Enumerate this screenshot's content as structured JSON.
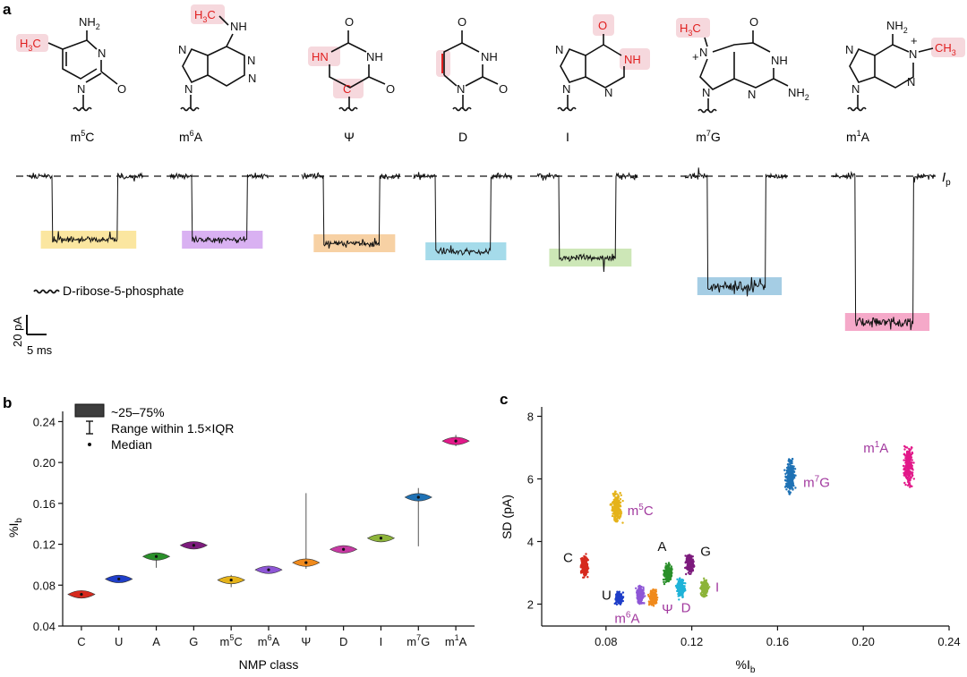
{
  "panels": {
    "a": "a",
    "b": "b",
    "c": "c"
  },
  "structures": [
    {
      "id": "m5C",
      "name": "m",
      "sup": "5",
      "tail": "C"
    },
    {
      "id": "m6A",
      "name": "m",
      "sup": "6",
      "tail": "A"
    },
    {
      "id": "Psi",
      "name": "Ψ",
      "sup": "",
      "tail": ""
    },
    {
      "id": "D",
      "name": "D",
      "sup": "",
      "tail": ""
    },
    {
      "id": "I",
      "name": "I",
      "sup": "",
      "tail": ""
    },
    {
      "id": "m7G",
      "name": "m",
      "sup": "7",
      "tail": "G"
    },
    {
      "id": "m1A",
      "name": "m",
      "sup": "1",
      "tail": "A"
    }
  ],
  "atoms": {
    "NH2": "NH",
    "sub2": "2",
    "N": "N",
    "O": "O",
    "NH": "NH",
    "HN": "HN",
    "H3C": "H",
    "sub3": "3",
    "C": "C",
    "CH3": "CH",
    "plus": "+"
  },
  "traces": {
    "open_pore_label": "I",
    "open_pore_sub": "p",
    "legend_label": "D-ribose-5-phosphate",
    "scale_current": "20 pA",
    "scale_time": "5 ms",
    "colors": [
      "#fbe6a0",
      "#d9b1f2",
      "#f7d1a4",
      "#a5dbea",
      "#cde7b7",
      "#a5cde4",
      "#f5a9c9"
    ]
  },
  "legend_b": {
    "box": "~25–75%",
    "range": "Range within 1.5×IQR",
    "median": "Median"
  },
  "chart_data": [
    {
      "type": "violin",
      "panel": "b",
      "ylabel": "%I",
      "ylabel_sub": "b",
      "xlabel": "NMP class",
      "ylim": [
        0.04,
        0.25
      ],
      "yticks": [
        "0.04",
        "0.08",
        "0.12",
        "0.16",
        "0.20",
        "0.24"
      ],
      "categories": [
        {
          "label": "C",
          "sup": ""
        },
        {
          "label": "U",
          "sup": ""
        },
        {
          "label": "A",
          "sup": ""
        },
        {
          "label": "G",
          "sup": ""
        },
        {
          "label": "m",
          "sup": "5",
          "tail": "C"
        },
        {
          "label": "m",
          "sup": "6",
          "tail": "A"
        },
        {
          "label": "Ψ",
          "sup": ""
        },
        {
          "label": "D",
          "sup": ""
        },
        {
          "label": "I",
          "sup": ""
        },
        {
          "label": "m",
          "sup": "7",
          "tail": "G"
        },
        {
          "label": "m",
          "sup": "1",
          "tail": "A"
        }
      ],
      "medians": [
        0.071,
        0.086,
        0.108,
        0.119,
        0.085,
        0.095,
        0.102,
        0.115,
        0.126,
        0.166,
        0.221
      ],
      "whisker_low": [
        0.069,
        0.084,
        0.097,
        0.116,
        0.078,
        0.093,
        0.096,
        0.112,
        0.123,
        0.118,
        0.216
      ],
      "whisker_high": [
        0.074,
        0.088,
        0.111,
        0.122,
        0.09,
        0.098,
        0.17,
        0.118,
        0.129,
        0.175,
        0.227
      ],
      "colors": [
        "#d62a1e",
        "#1f3ec9",
        "#2a8f2a",
        "#7d1b7d",
        "#e5b31a",
        "#8e56d6",
        "#f08a1c",
        "#c63aa3",
        "#8db43a",
        "#1f72b5",
        "#e21a8a"
      ]
    },
    {
      "type": "scatter",
      "panel": "c",
      "xlabel": "%I",
      "xlabel_sub": "b",
      "ylabel": "SD (pA)",
      "xlim": [
        0.05,
        0.24
      ],
      "ylim": [
        1.3,
        8.3
      ],
      "xticks": [
        "0.08",
        "0.12",
        "0.16",
        "0.20",
        "0.24"
      ],
      "yticks": [
        "2",
        "4",
        "6",
        "8"
      ],
      "clusters": [
        {
          "label": "C",
          "x": 0.07,
          "y": 3.2,
          "sx": 0.0015,
          "sy": 0.28,
          "color": "#d62a1e",
          "lx": 0.06,
          "ly": 3.35,
          "lcolor": "#111111"
        },
        {
          "label": "U",
          "x": 0.086,
          "y": 2.2,
          "sx": 0.0015,
          "sy": 0.15,
          "color": "#1f3ec9",
          "lx": 0.078,
          "ly": 2.15,
          "lcolor": "#111111"
        },
        {
          "label": "A",
          "x": 0.109,
          "y": 3.0,
          "sx": 0.0018,
          "sy": 0.25,
          "color": "#2a8f2a",
          "lx": 0.104,
          "ly": 3.7,
          "lcolor": "#111111"
        },
        {
          "label": "G",
          "x": 0.119,
          "y": 3.3,
          "sx": 0.0016,
          "sy": 0.25,
          "color": "#7d1b7d",
          "lx": 0.124,
          "ly": 3.55,
          "lcolor": "#111111"
        },
        {
          "label": "m",
          "sup": "5",
          "tail": "C",
          "x": 0.085,
          "y": 5.1,
          "sx": 0.002,
          "sy": 0.45,
          "color": "#e5b31a",
          "lx": 0.09,
          "ly": 4.85,
          "lcolor": "#a23a9f"
        },
        {
          "label": "m",
          "sup": "6",
          "tail": "A",
          "x": 0.096,
          "y": 2.3,
          "sx": 0.0016,
          "sy": 0.25,
          "color": "#8e56d6",
          "lx": 0.084,
          "ly": 1.4,
          "lcolor": "#a23a9f"
        },
        {
          "label": "Ψ",
          "x": 0.102,
          "y": 2.2,
          "sx": 0.0016,
          "sy": 0.22,
          "color": "#f08a1c",
          "lx": 0.106,
          "ly": 1.7,
          "lcolor": "#a23a9f"
        },
        {
          "label": "D",
          "x": 0.115,
          "y": 2.5,
          "sx": 0.0016,
          "sy": 0.25,
          "color": "#1fb3d8",
          "lx": 0.115,
          "ly": 1.75,
          "lcolor": "#a23a9f"
        },
        {
          "label": "I",
          "x": 0.126,
          "y": 2.5,
          "sx": 0.0015,
          "sy": 0.22,
          "color": "#8db43a",
          "lx": 0.131,
          "ly": 2.4,
          "lcolor": "#a23a9f"
        },
        {
          "label": "m",
          "sup": "7",
          "tail": "G",
          "x": 0.166,
          "y": 6.1,
          "sx": 0.002,
          "sy": 0.5,
          "color": "#1f72b5",
          "lx": 0.172,
          "ly": 5.75,
          "lcolor": "#a23a9f"
        },
        {
          "label": "m",
          "sup": "1",
          "tail": "A",
          "x": 0.221,
          "y": 6.4,
          "sx": 0.002,
          "sy": 0.55,
          "color": "#e21a8a",
          "lx": 0.2,
          "ly": 6.85,
          "lcolor": "#a23a9f"
        }
      ]
    }
  ]
}
